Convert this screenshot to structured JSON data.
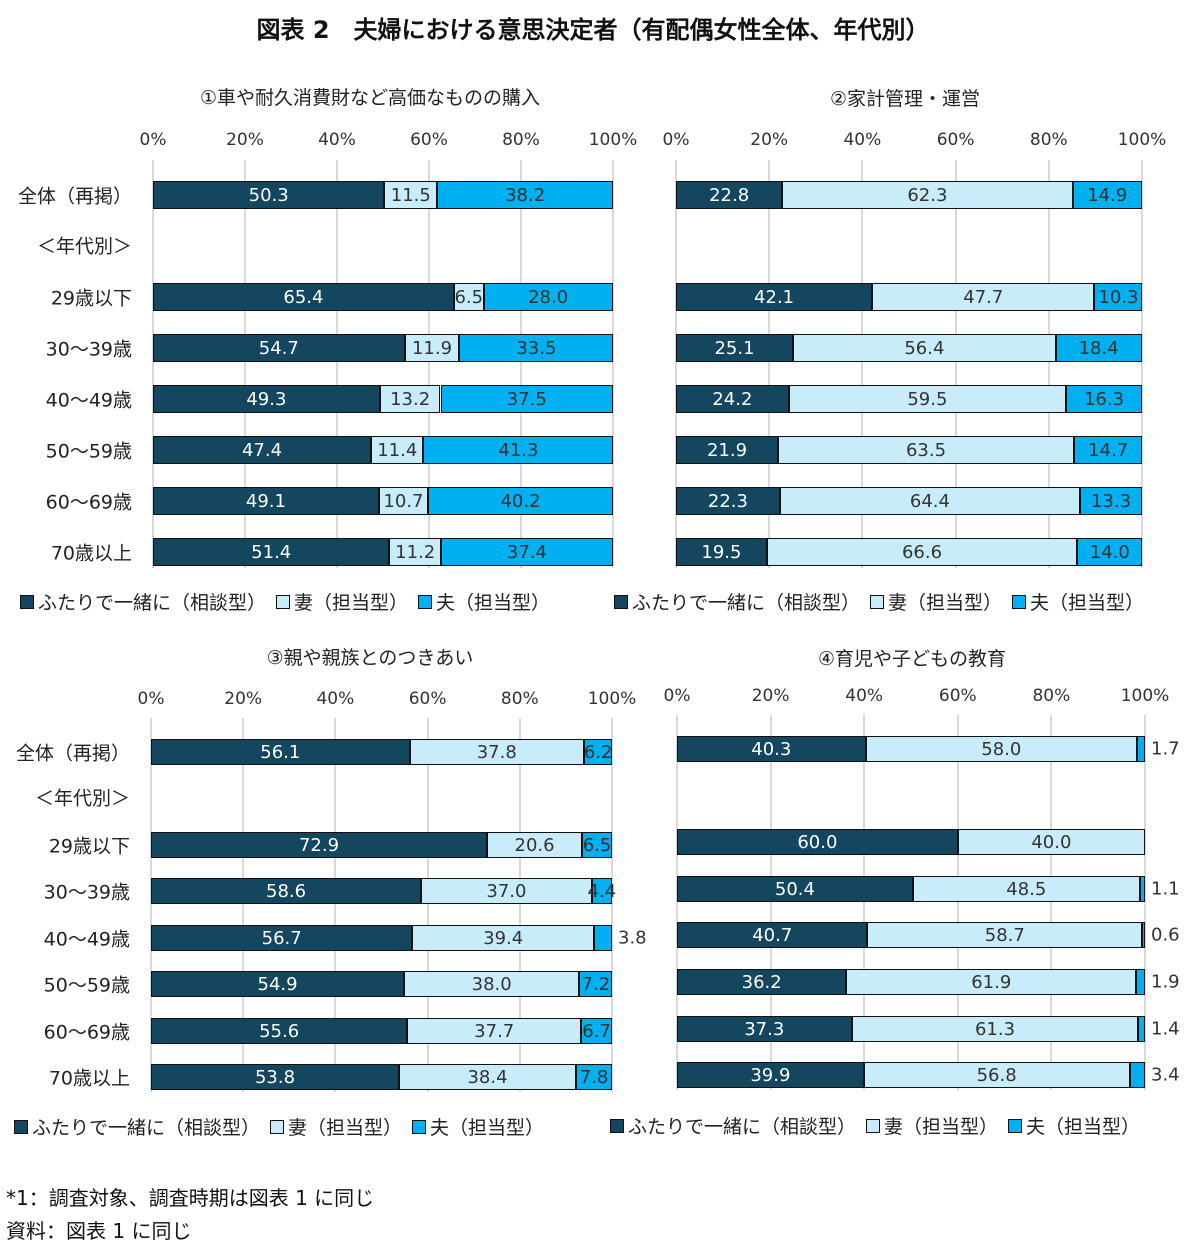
{
  "title": "図表 2　夫婦における意思決定者（有配偶女性全体、年代別）",
  "colors": {
    "together": "#14475f",
    "wife": "#c9ecfa",
    "husband": "#00b0f0"
  },
  "chart_data": [
    {
      "type": "bar",
      "orientation": "horizontal",
      "stacked": true,
      "title": "①車や耐久消費財など高価なものの購入",
      "xlim": [
        0,
        100
      ],
      "x_ticks": [
        "0%",
        "20%",
        "40%",
        "60%",
        "80%",
        "100%"
      ],
      "grid": true,
      "categories": [
        "全体（再掲）",
        "＜年代別＞",
        "29歳以下",
        "30～39歳",
        "40～49歳",
        "50～59歳",
        "60～69歳",
        "70歳以上"
      ],
      "series": [
        {
          "name": "ふたりで一緒に（相談型）",
          "values": [
            50.3,
            null,
            65.4,
            54.7,
            49.3,
            47.4,
            49.1,
            51.4
          ]
        },
        {
          "name": "妻（担当型）",
          "values": [
            11.5,
            null,
            6.5,
            11.9,
            13.2,
            11.4,
            10.7,
            11.2
          ]
        },
        {
          "name": "夫（担当型）",
          "values": [
            38.2,
            null,
            28.0,
            33.5,
            37.5,
            41.3,
            40.2,
            37.4
          ]
        }
      ],
      "legend": "bottom"
    },
    {
      "type": "bar",
      "orientation": "horizontal",
      "stacked": true,
      "title": "②家計管理・運営",
      "xlim": [
        0,
        100
      ],
      "x_ticks": [
        "0%",
        "20%",
        "40%",
        "60%",
        "80%",
        "100%"
      ],
      "grid": true,
      "categories": [
        "全体（再掲）",
        "＜年代別＞",
        "29歳以下",
        "30～39歳",
        "40～49歳",
        "50～59歳",
        "60～69歳",
        "70歳以上"
      ],
      "series": [
        {
          "name": "ふたりで一緒に（相談型）",
          "values": [
            22.8,
            null,
            42.1,
            25.1,
            24.2,
            21.9,
            22.3,
            19.5
          ]
        },
        {
          "name": "妻（担当型）",
          "values": [
            62.3,
            null,
            47.7,
            56.4,
            59.5,
            63.5,
            64.4,
            66.6
          ]
        },
        {
          "name": "夫（担当型）",
          "values": [
            14.9,
            null,
            10.3,
            18.4,
            16.3,
            14.7,
            13.3,
            14.0
          ]
        }
      ],
      "legend": "bottom"
    },
    {
      "type": "bar",
      "orientation": "horizontal",
      "stacked": true,
      "title": "③親や親族とのつきあい",
      "xlim": [
        0,
        100
      ],
      "x_ticks": [
        "0%",
        "20%",
        "40%",
        "60%",
        "80%",
        "100%"
      ],
      "grid": true,
      "categories": [
        "全体（再掲）",
        "＜年代別＞",
        "29歳以下",
        "30～39歳",
        "40～49歳",
        "50～59歳",
        "60～69歳",
        "70歳以上"
      ],
      "series": [
        {
          "name": "ふたりで一緒に（相談型）",
          "values": [
            56.1,
            null,
            72.9,
            58.6,
            56.7,
            54.9,
            55.6,
            53.8
          ]
        },
        {
          "name": "妻（担当型）",
          "values": [
            37.8,
            null,
            20.6,
            37.0,
            39.4,
            38.0,
            37.7,
            38.4
          ]
        },
        {
          "name": "夫（担当型）",
          "values": [
            6.2,
            null,
            6.5,
            4.4,
            3.8,
            7.2,
            6.7,
            7.8
          ]
        }
      ],
      "legend": "bottom"
    },
    {
      "type": "bar",
      "orientation": "horizontal",
      "stacked": true,
      "title": "④育児や子どもの教育",
      "xlim": [
        0,
        100
      ],
      "x_ticks": [
        "0%",
        "20%",
        "40%",
        "60%",
        "80%",
        "100%"
      ],
      "grid": true,
      "categories": [
        "全体（再掲）",
        "＜年代別＞",
        "29歳以下",
        "30～39歳",
        "40～49歳",
        "50～59歳",
        "60～69歳",
        "70歳以上"
      ],
      "series": [
        {
          "name": "ふたりで一緒に（相談型）",
          "values": [
            40.3,
            null,
            60.0,
            50.4,
            40.7,
            36.2,
            37.3,
            39.9
          ]
        },
        {
          "name": "妻（担当型）",
          "values": [
            58.0,
            null,
            40.0,
            48.5,
            58.7,
            61.9,
            61.3,
            56.8
          ]
        },
        {
          "name": "夫（担当型）",
          "values": [
            1.7,
            null,
            null,
            1.1,
            0.6,
            1.9,
            1.4,
            3.4
          ]
        }
      ],
      "legend": "bottom"
    }
  ],
  "notes": [
    "*1：調査対象、調査時期は図表 1 に同じ",
    "資料：図表 1 に同じ"
  ]
}
